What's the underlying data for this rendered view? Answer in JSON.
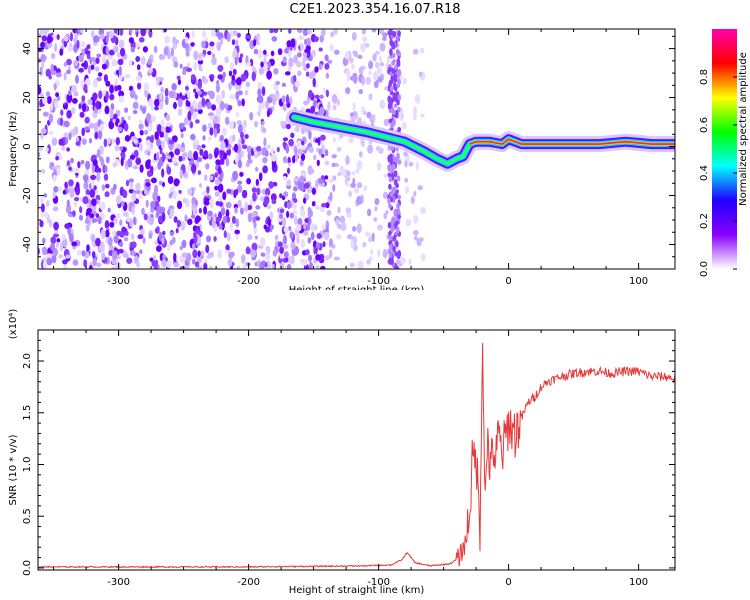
{
  "title": "C2E1.2023.354.16.07.R18",
  "chart_data": [
    {
      "type": "heatmap",
      "xlabel": "Height of straight line (km)",
      "ylabel": "Frequency (Hz)",
      "xlim": [
        -362,
        128
      ],
      "ylim": [
        -50,
        48
      ],
      "xticks": [
        -300,
        -200,
        -100,
        0,
        100
      ],
      "xtick_labels": [
        "-300",
        "-200",
        "-100",
        "0",
        "100"
      ],
      "yticks": [
        40,
        20,
        0,
        -20,
        -40
      ],
      "ytick_labels": [
        "40",
        "20",
        "0",
        "-20",
        "-40"
      ],
      "colorbar": {
        "label": "Normalized spectral amplitude",
        "range": [
          0,
          1
        ],
        "ticks": [
          0.0,
          0.2,
          0.4,
          0.6,
          0.8
        ],
        "tick_labels": [
          "0.0",
          "0.2",
          "0.4",
          "0.6",
          "0.8"
        ],
        "colors": [
          "#ffffff",
          "#8a00ff",
          "#2000ff",
          "#00ffff",
          "#00ff00",
          "#ffff00",
          "#ff0000",
          "#ff00aa"
        ]
      },
      "ridge": {
        "x": [
          -165,
          -150,
          -130,
          -110,
          -95,
          -80,
          -65,
          -55,
          -47,
          -40,
          -35,
          -30,
          -25,
          -15,
          -5,
          0,
          10,
          30,
          50,
          70,
          90,
          110,
          128
        ],
        "y": [
          12,
          10,
          8,
          6,
          4,
          2,
          -2,
          -5,
          -7,
          -5,
          -4,
          1,
          2,
          2,
          1,
          3,
          1,
          1,
          1,
          1,
          2,
          1,
          1
        ]
      },
      "noise_region_x": [
        -362,
        -65
      ],
      "gap_x": [
        -92,
        -60
      ]
    },
    {
      "type": "line",
      "xlabel": "Height of straight line (km)",
      "ylabel": "SNR (10 * v/v)",
      "y_multiplier_label": "(x10⁴)",
      "xlim": [
        -362,
        128
      ],
      "ylim": [
        -0.02,
        2.3
      ],
      "xticks": [
        -300,
        -200,
        -100,
        0,
        100
      ],
      "xtick_labels": [
        "-300",
        "-200",
        "-100",
        "0",
        "100"
      ],
      "yticks": [
        0.0,
        0.5,
        1.0,
        1.5,
        2.0
      ],
      "ytick_labels": [
        "0.0",
        "0.5",
        "1.0",
        "1.5",
        "2.0"
      ],
      "series_color": "#e8393a",
      "x": [
        -362,
        -300,
        -200,
        -110,
        -90,
        -82,
        -78,
        -72,
        -60,
        -45,
        -38,
        -33,
        -30,
        -28,
        -25,
        -22,
        -20,
        -18,
        -16,
        -14,
        -12,
        -10,
        -8,
        -5,
        0,
        5,
        10,
        15,
        20,
        25,
        30,
        40,
        50,
        60,
        70,
        80,
        90,
        100,
        110,
        120,
        128
      ],
      "y": [
        0.01,
        0.01,
        0.01,
        0.02,
        0.03,
        0.08,
        0.15,
        0.05,
        0.02,
        0.04,
        0.1,
        0.25,
        0.55,
        1.0,
        1.1,
        0.4,
        2.25,
        0.6,
        1.3,
        0.9,
        1.2,
        1.0,
        1.3,
        1.1,
        1.4,
        1.3,
        1.45,
        1.6,
        1.65,
        1.75,
        1.8,
        1.85,
        1.88,
        1.9,
        1.9,
        1.88,
        1.9,
        1.9,
        1.85,
        1.85,
        1.83
      ]
    }
  ]
}
